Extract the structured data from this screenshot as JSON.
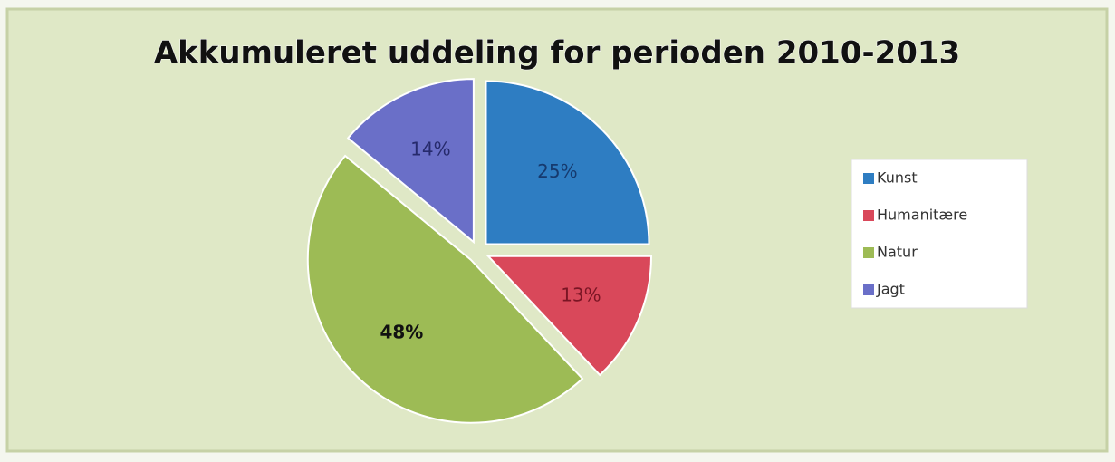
{
  "chart_data": {
    "type": "pie",
    "title": "Akkumuleret uddeling for perioden 2010-2013",
    "categories": [
      "Kunst",
      "Humanitære",
      "Natur",
      "Jagt"
    ],
    "values": [
      25,
      13,
      48,
      14
    ],
    "value_labels": [
      "25%",
      "13%",
      "48%",
      "14%"
    ],
    "colors": [
      "#2e7dc2",
      "#d9485a",
      "#9dbb55",
      "#6a6fc8"
    ],
    "legend": "right"
  }
}
